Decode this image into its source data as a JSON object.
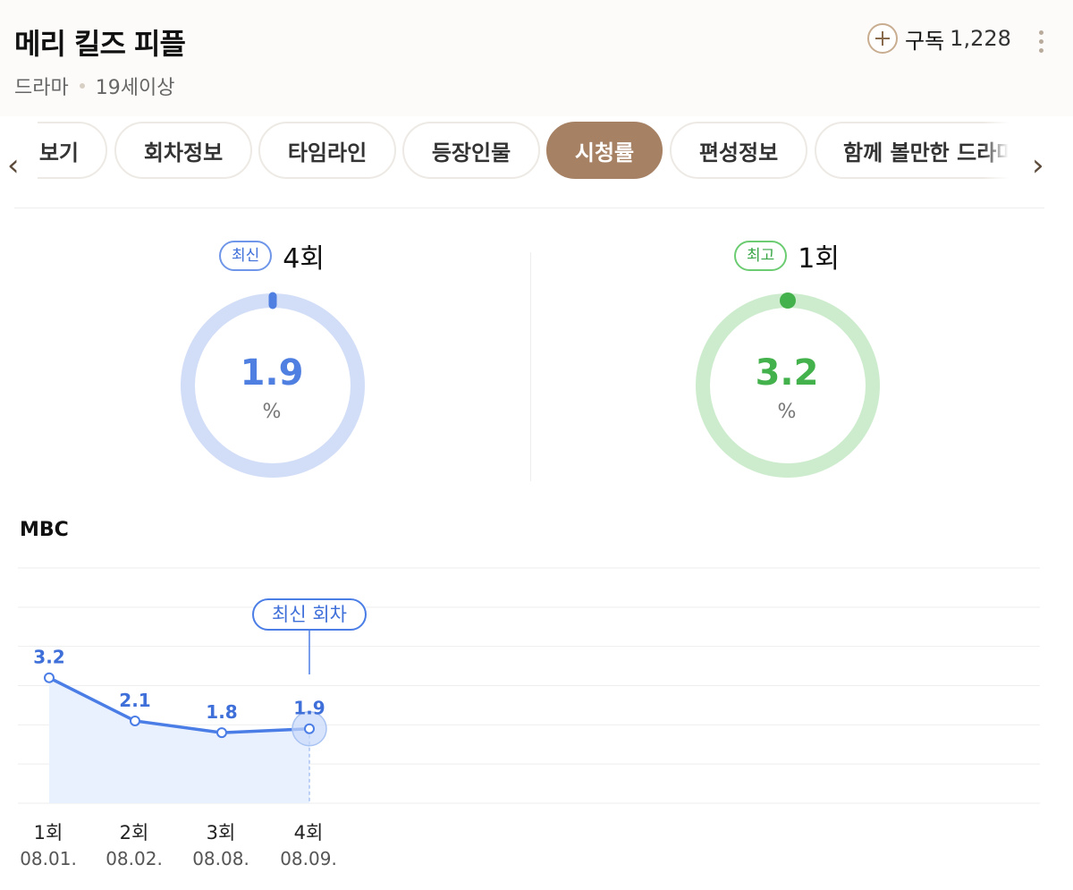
{
  "header": {
    "title": "메리 킬즈 피플",
    "genre": "드라마",
    "rating": "19세이상",
    "subscribe_label": "구독",
    "subscribe_count": "1,228"
  },
  "tabs": [
    {
      "label": "보기",
      "active": false
    },
    {
      "label": "회차정보",
      "active": false
    },
    {
      "label": "타임라인",
      "active": false
    },
    {
      "label": "등장인물",
      "active": false
    },
    {
      "label": "시청률",
      "active": true
    },
    {
      "label": "편성정보",
      "active": false
    },
    {
      "label": "함께 볼만한 드라마",
      "active": false
    }
  ],
  "stats": {
    "latest": {
      "badge": "최신",
      "episode": "4회",
      "value": "1.9",
      "unit": "%",
      "color": "#4f7fe0",
      "track": "#d2ddf7",
      "fraction": 0.0
    },
    "best": {
      "badge": "최고",
      "episode": "1회",
      "value": "3.2",
      "unit": "%",
      "color": "#44b24c",
      "track": "#cdeccd",
      "fraction": 0.0
    }
  },
  "chart_label": "MBC",
  "chart_data": {
    "type": "line",
    "series": [
      {
        "name": "MBC",
        "values": [
          3.2,
          2.1,
          1.8,
          1.9
        ]
      }
    ],
    "categories": [
      "1회",
      "2회",
      "3회",
      "4회"
    ],
    "dates": [
      "08.01.",
      "08.02.",
      "08.08.",
      "08.09."
    ],
    "value_labels": [
      "3.2",
      "2.1",
      "1.8",
      "1.9"
    ],
    "ylim": [
      0,
      6
    ],
    "grid": true,
    "highlight_index": 3,
    "highlight_label": "최신 회차",
    "line_color": "#4a7de6",
    "area_color": "#eaf1fe"
  }
}
